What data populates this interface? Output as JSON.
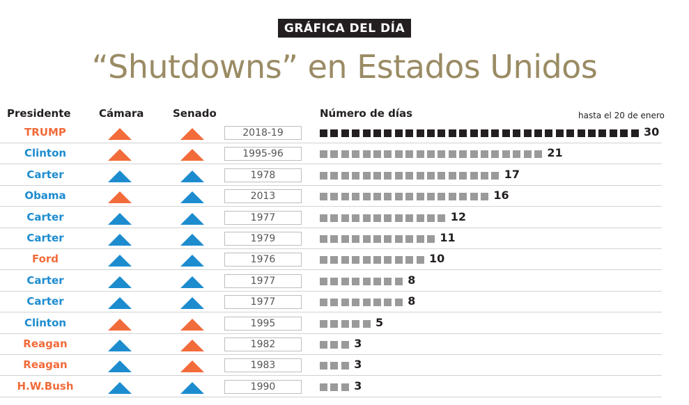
{
  "kicker": "GRÁFICA DEL DÍA",
  "title": "“Shutdowns” en Estados Unidos",
  "headers": {
    "president": "Presidente",
    "house": "Cámara",
    "senate": "Senado",
    "days": "Número de días",
    "note": "hasta el 20 de enero"
  },
  "colors": {
    "republican": "#f26b3a",
    "democrat": "#1d8ccf",
    "bar_current": "#231f20",
    "bar_past": "#9a9a9a",
    "title": "#9a8b64"
  },
  "icons": {
    "house_control": "triangle-up-icon",
    "senate_control": "triangle-up-icon"
  },
  "chart_data": {
    "type": "bar",
    "orientation": "horizontal",
    "xlabel": "Número de días",
    "rows": [
      {
        "president": "TRUMP",
        "president_party": "R",
        "house": "R",
        "senate": "R",
        "year": "2018-19",
        "days": 30,
        "current": true
      },
      {
        "president": "Clinton",
        "president_party": "D",
        "house": "R",
        "senate": "R",
        "year": "1995-96",
        "days": 21,
        "current": false
      },
      {
        "president": "Carter",
        "president_party": "D",
        "house": "D",
        "senate": "D",
        "year": "1978",
        "days": 17,
        "current": false
      },
      {
        "president": "Obama",
        "president_party": "D",
        "house": "R",
        "senate": "D",
        "year": "2013",
        "days": 16,
        "current": false
      },
      {
        "president": "Carter",
        "president_party": "D",
        "house": "D",
        "senate": "D",
        "year": "1977",
        "days": 12,
        "current": false
      },
      {
        "president": "Carter",
        "president_party": "D",
        "house": "D",
        "senate": "D",
        "year": "1979",
        "days": 11,
        "current": false
      },
      {
        "president": "Ford",
        "president_party": "R",
        "house": "D",
        "senate": "D",
        "year": "1976",
        "days": 10,
        "current": false
      },
      {
        "president": "Carter",
        "president_party": "D",
        "house": "D",
        "senate": "D",
        "year": "1977",
        "days": 8,
        "current": false
      },
      {
        "president": "Carter",
        "president_party": "D",
        "house": "D",
        "senate": "D",
        "year": "1977",
        "days": 8,
        "current": false
      },
      {
        "president": "Clinton",
        "president_party": "D",
        "house": "R",
        "senate": "R",
        "year": "1995",
        "days": 5,
        "current": false
      },
      {
        "president": "Reagan",
        "president_party": "R",
        "house": "D",
        "senate": "R",
        "year": "1982",
        "days": 3,
        "current": false
      },
      {
        "president": "Reagan",
        "president_party": "R",
        "house": "D",
        "senate": "R",
        "year": "1983",
        "days": 3,
        "current": false
      },
      {
        "president": "H.W.Bush",
        "president_party": "R",
        "house": "D",
        "senate": "D",
        "year": "1990",
        "days": 3,
        "current": false
      }
    ]
  }
}
